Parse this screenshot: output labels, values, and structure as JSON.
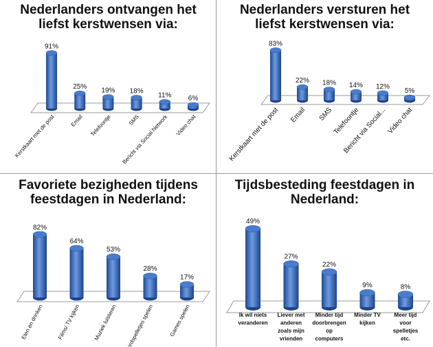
{
  "chart_data": [
    {
      "type": "bar",
      "title": "Nederlanders ontvangen het liefst kerstwensen via:",
      "categories": [
        "Kerstkaart met de post",
        "Email",
        "Telefoontje",
        "SMS",
        "Bericht via Social Network",
        "Video chat"
      ],
      "values": [
        91,
        25,
        19,
        18,
        11,
        6
      ],
      "data_labels": [
        "91%",
        "25%",
        "19%",
        "18%",
        "11%",
        "6%"
      ],
      "unit": "%",
      "style": "3d-cylinder",
      "color": "#3a6cc0",
      "grid": false
    },
    {
      "type": "bar",
      "title": "Nederlanders versturen het liefst kerstwensen via:",
      "categories": [
        "Kerstkaart met de post",
        "Email",
        "SMS",
        "Telefoontje",
        "Bericht via Social...",
        "Video chat"
      ],
      "values": [
        83,
        22,
        18,
        14,
        12,
        5
      ],
      "data_labels": [
        "83%",
        "22%",
        "18%",
        "14%",
        "12%",
        "5%"
      ],
      "unit": "%",
      "style": "3d-cylinder",
      "color": "#3a6cc0",
      "grid": false
    },
    {
      "type": "bar",
      "title": "Favoriete bezigheden tijdens feestdagen in Nederland:",
      "categories": [
        "Eten en drinken",
        "Films/ TV kijken",
        "Muziek luisteren",
        "Bordspelletjes spelen",
        "Games spelen"
      ],
      "values": [
        82,
        64,
        53,
        28,
        17
      ],
      "data_labels": [
        "82%",
        "64%",
        "53%",
        "28%",
        "17%"
      ],
      "unit": "%",
      "style": "3d-cylinder",
      "color": "#3a6cc0",
      "grid": false
    },
    {
      "type": "bar",
      "title": "Tijdsbesteding feestdagen in Nederland:",
      "categories": [
        "Ik wil niets veranderen",
        "Liever met anderen zoals mijn vrienden",
        "Minder tijd doorbrengen op computers",
        "Minder TV kijken",
        "Meer tijd voor spelletjes etc."
      ],
      "values": [
        49,
        27,
        22,
        9,
        8
      ],
      "data_labels": [
        "49%",
        "27%",
        "22%",
        "9%",
        "8%"
      ],
      "unit": "%",
      "style": "3d-cylinder",
      "color": "#3a6cc0",
      "grid": false
    }
  ],
  "titles": {
    "c0": [
      "Nederlanders ontvangen het",
      "liefst kerstwensen via:"
    ],
    "c1": [
      "Nederlanders versturen het",
      "liefst kerstwensen via:"
    ],
    "c2": [
      "Favoriete bezigheden tijdens",
      "feestdagen in Nederland:"
    ],
    "c3": [
      "Tijdsbesteding feestdagen in",
      "Nederland:"
    ]
  },
  "wrapped_labels_c3": [
    [
      "Ik wil niets",
      "veranderen"
    ],
    [
      "Liever met",
      "anderen",
      "zoals mijn",
      "vrienden"
    ],
    [
      "Minder tijd",
      "doorbrengen",
      "op",
      "computers"
    ],
    [
      "Minder TV",
      "kijken"
    ],
    [
      "Meer tijd",
      "voor",
      "spelletjes",
      "etc."
    ]
  ]
}
